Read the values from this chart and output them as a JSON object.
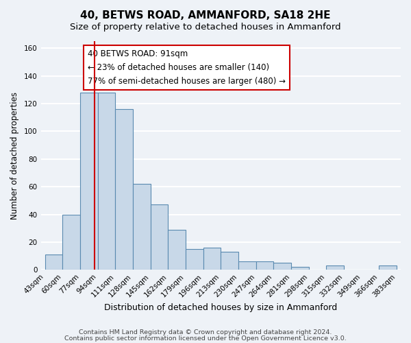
{
  "title": "40, BETWS ROAD, AMMANFORD, SA18 2HE",
  "subtitle": "Size of property relative to detached houses in Ammanford",
  "xlabel": "Distribution of detached houses by size in Ammanford",
  "ylabel": "Number of detached properties",
  "bar_edges": [
    43,
    60,
    77,
    94,
    111,
    128,
    145,
    162,
    179,
    196,
    213,
    230,
    247,
    264,
    281,
    298,
    315,
    332,
    349,
    366,
    383
  ],
  "bar_heights": [
    11,
    40,
    128,
    128,
    116,
    62,
    47,
    29,
    15,
    16,
    13,
    6,
    6,
    5,
    2,
    0,
    3,
    0,
    0,
    3
  ],
  "bar_color": "#c8d8e8",
  "bar_edge_color": "#5a8ab0",
  "ylim": [
    0,
    165
  ],
  "yticks": [
    0,
    20,
    40,
    60,
    80,
    100,
    120,
    140,
    160
  ],
  "property_line_x": 91,
  "property_line_color": "#cc0000",
  "annotation_text": "40 BETWS ROAD: 91sqm\n← 23% of detached houses are smaller (140)\n77% of semi-detached houses are larger (480) →",
  "annotation_box_color": "#ffffff",
  "annotation_box_edge": "#cc0000",
  "footer_line1": "Contains HM Land Registry data © Crown copyright and database right 2024.",
  "footer_line2": "Contains public sector information licensed under the Open Government Licence v3.0.",
  "background_color": "#eef2f7",
  "grid_color": "#ffffff",
  "title_fontsize": 11,
  "subtitle_fontsize": 9.5,
  "xlabel_fontsize": 9,
  "ylabel_fontsize": 8.5,
  "tick_label_fontsize": 7.5,
  "annotation_fontsize": 8.5,
  "footer_fontsize": 6.8
}
